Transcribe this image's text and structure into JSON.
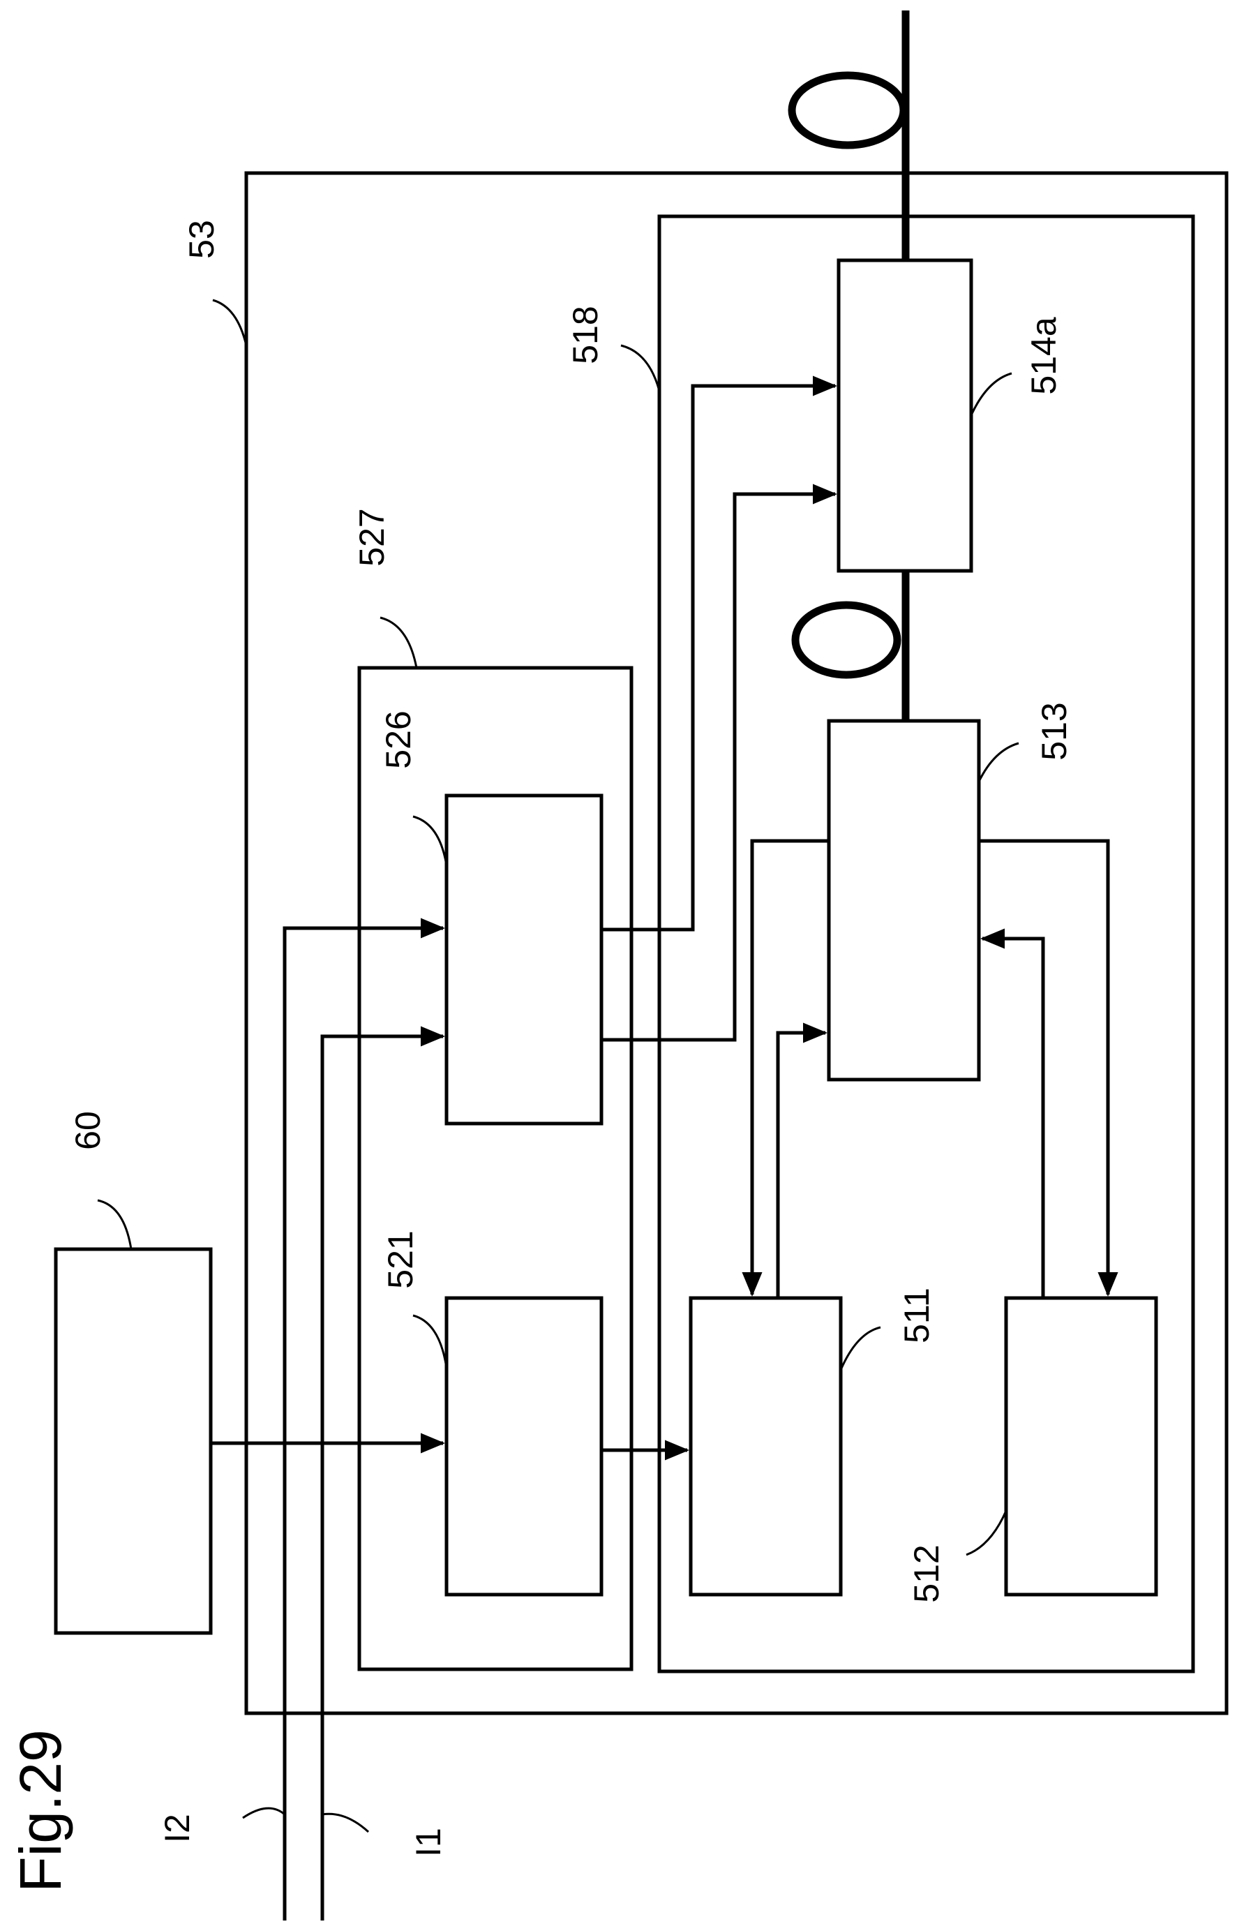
{
  "figure": {
    "title": "Fig.29"
  },
  "labels": {
    "l53": "53",
    "l518": "518",
    "l514a": "514a",
    "l527": "527",
    "l526": "526",
    "l513": "513",
    "l60": "60",
    "l521": "521",
    "l511": "511",
    "l512": "512",
    "lI2": "I2",
    "lI1": "I1"
  }
}
